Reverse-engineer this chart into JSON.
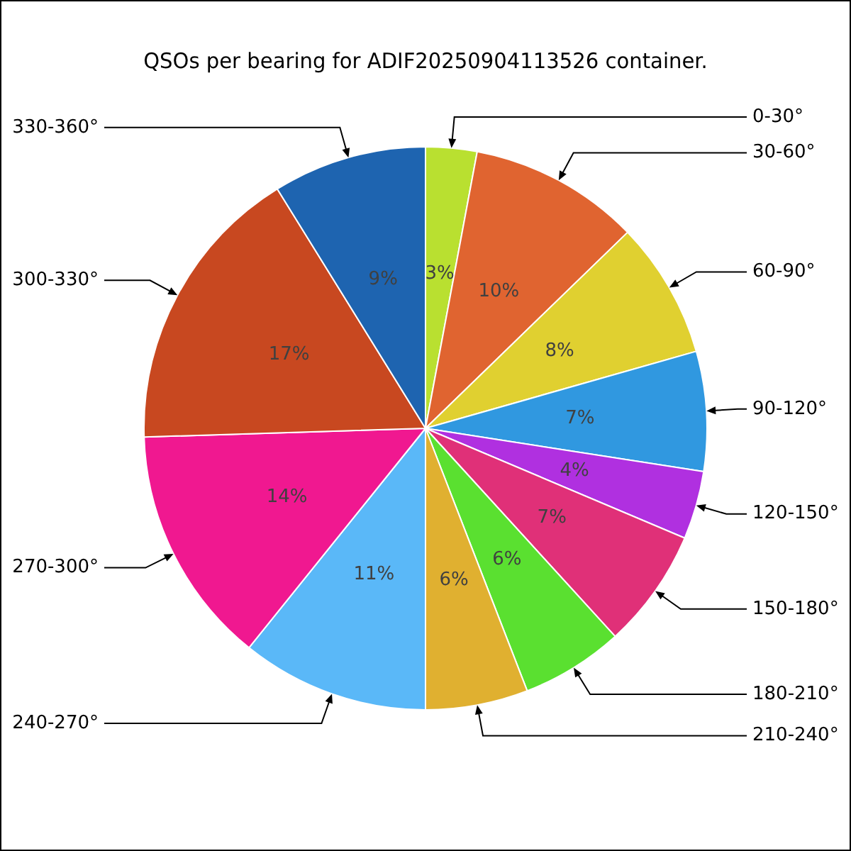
{
  "chart_data": {
    "type": "pie",
    "title": "QSOs per bearing for ADIF20250904113526 container.",
    "categories": [
      "0-30°",
      "30-60°",
      "60-90°",
      "90-120°",
      "120-150°",
      "150-180°",
      "180-210°",
      "210-240°",
      "240-270°",
      "270-300°",
      "300-330°",
      "330-360°"
    ],
    "values": [
      3,
      10,
      8,
      7,
      4,
      7,
      6,
      6,
      11,
      14,
      17,
      9
    ],
    "value_labels": [
      "3%",
      "10%",
      "8%",
      "7%",
      "4%",
      "7%",
      "6%",
      "6%",
      "11%",
      "14%",
      "17%",
      "9%"
    ],
    "colors": [
      "#b9e030",
      "#e06430",
      "#e0d030",
      "#3098e0",
      "#b030e0",
      "#e03078",
      "#5ae030",
      "#e0b030",
      "#5ab8f8",
      "#f01890",
      "#c84820",
      "#1e64b0"
    ],
    "legend": false
  }
}
